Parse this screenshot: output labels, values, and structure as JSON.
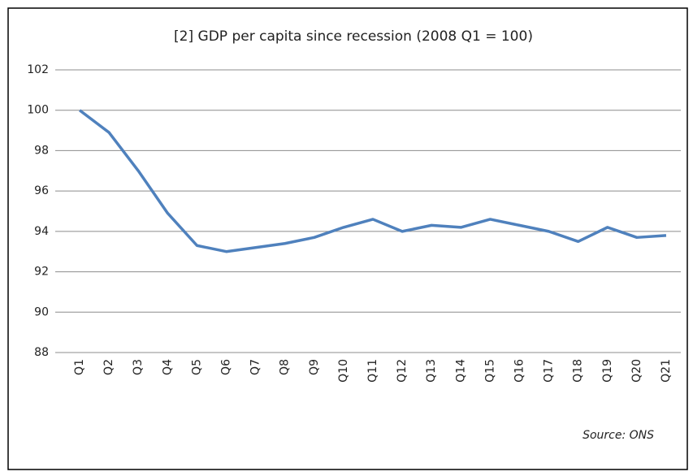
{
  "chart_data": {
    "type": "line",
    "title": "[2] GDP per capita since recession (2008  Q1 = 100)",
    "annotation": "Source:  ONS",
    "categories": [
      "Q1",
      "Q2",
      "Q3",
      "Q4",
      "Q5",
      "Q6",
      "Q7",
      "Q8",
      "Q9",
      "Q10",
      "Q11",
      "Q12",
      "Q13",
      "Q14",
      "Q15",
      "Q16",
      "Q17",
      "Q18",
      "Q19",
      "Q20",
      "Q21"
    ],
    "values": [
      100,
      98.9,
      97,
      94.9,
      93.3,
      93.0,
      93.2,
      93.4,
      93.7,
      94.2,
      94.6,
      94.0,
      94.3,
      94.2,
      94.6,
      94.3,
      94.0,
      93.5,
      94.2,
      93.7,
      93.8
    ],
    "color": "#4f81bd",
    "ylim": [
      88,
      102
    ],
    "yticks": [
      88,
      90,
      92,
      94,
      96,
      98,
      100,
      102
    ],
    "grid": true
  }
}
